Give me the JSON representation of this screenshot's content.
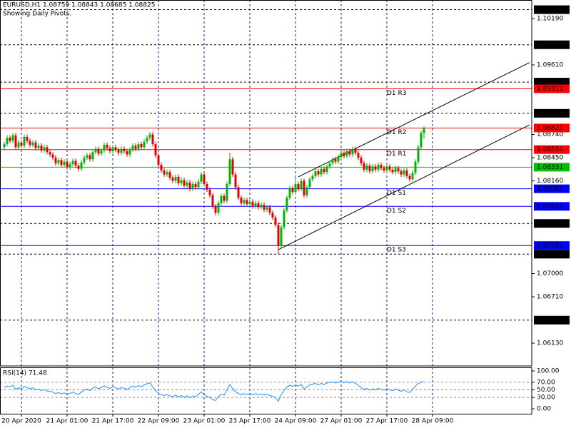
{
  "chart_data": [
    {
      "type": "candlestick",
      "title": "EURUSD,H1 1.08759 1.08843 1.08685 1.08825",
      "subtitle": "Showing Daily Pivots.",
      "up_color": "#00b400",
      "down_color": "#e00000",
      "grid": true,
      "grid_color": "#1a1aa0",
      "xlim": [
        -1.5,
        184.75
      ],
      "ylim": [
        1.05845,
        1.10422
      ],
      "xticks": [
        {
          "value": 6,
          "label": "20 Apr 2020"
        },
        {
          "value": 22,
          "label": "21 Apr 01:00"
        },
        {
          "value": 38,
          "label": "21 Apr 17:00"
        },
        {
          "value": 54,
          "label": "22 Apr 09:00"
        },
        {
          "value": 70,
          "label": "23 Apr 01:00"
        },
        {
          "value": 86,
          "label": "23 Apr 17:00"
        },
        {
          "value": 102,
          "label": "24 Apr 09:00"
        },
        {
          "value": 118,
          "label": "27 Apr 01:00"
        },
        {
          "value": 134,
          "label": "27 Apr 17:00"
        },
        {
          "value": 150,
          "label": "28 Apr 09:00"
        }
      ],
      "yticks": [
        {
          "value": 1.1019,
          "label": "1.10190"
        },
        {
          "value": 1.0961,
          "label": "1.09610"
        },
        {
          "value": 1.0874,
          "label": "1.08740"
        },
        {
          "value": 1.0845,
          "label": "1.08450"
        },
        {
          "value": 1.0816,
          "label": "1.08160"
        },
        {
          "value": 1.07,
          "label": "1.07000"
        },
        {
          "value": 1.0671,
          "label": "1.06710"
        },
        {
          "value": 1.0613,
          "label": "1.06130"
        }
      ],
      "hlines": [
        1.10301,
        1.09862,
        1.09395,
        1.09005,
        1.07627,
        1.07243,
        1.06418
      ],
      "pivots": [
        {
          "name": "D1 R3",
          "value": 1.09311,
          "color": "#ff0000"
        },
        {
          "name": "D1 R2",
          "value": 1.08821,
          "color": "#ff0000"
        },
        {
          "name": "D1 R1",
          "value": 1.08551,
          "color": "#ff0000"
        },
        {
          "value": 1.08331,
          "color": "#00c000"
        },
        {
          "name": "D1 S1",
          "value": 1.08061,
          "color": "#0000ff"
        },
        {
          "name": "D1 S2",
          "value": 1.07841,
          "color": "#0000ff"
        },
        {
          "name": "D1 S3",
          "value": 1.07351,
          "color": "#0000ff"
        }
      ],
      "trendlines": [
        {
          "x": [
            103,
            184
          ],
          "values": [
            1.0821,
            1.0964
          ]
        },
        {
          "x": [
            96,
            184
          ],
          "values": [
            1.073,
            1.0886
          ]
        }
      ],
      "ohlc": [
        [
          1.0858,
          1.0865,
          1.0855,
          1.0862
        ],
        [
          1.0862,
          1.0873,
          1.0859,
          1.087
        ],
        [
          1.087,
          1.0873,
          1.0863,
          1.0866
        ],
        [
          1.0866,
          1.0876,
          1.0863,
          1.0873
        ],
        [
          1.0873,
          1.0876,
          1.0855,
          1.0858
        ],
        [
          1.0858,
          1.0867,
          1.0855,
          1.0864
        ],
        [
          1.0864,
          1.0867,
          1.0857,
          1.086
        ],
        [
          1.086,
          1.0874,
          1.0857,
          1.0871
        ],
        [
          1.0871,
          1.0874,
          1.0863,
          1.0866
        ],
        [
          1.0866,
          1.0869,
          1.0858,
          1.0861
        ],
        [
          1.0861,
          1.0867,
          1.0858,
          1.0864
        ],
        [
          1.0864,
          1.0867,
          1.0854,
          1.0857
        ],
        [
          1.0857,
          1.0863,
          1.0854,
          1.086
        ],
        [
          1.086,
          1.0863,
          1.0851,
          1.0854
        ],
        [
          1.0854,
          1.0861,
          1.0851,
          1.0858
        ],
        [
          1.0858,
          1.0861,
          1.0849,
          1.0852
        ],
        [
          1.0852,
          1.0855,
          1.0846,
          1.0849
        ],
        [
          1.0849,
          1.0852,
          1.0842,
          1.0845
        ],
        [
          1.0845,
          1.0848,
          1.0835,
          1.0838
        ],
        [
          1.0838,
          1.0845,
          1.0835,
          1.0842
        ],
        [
          1.0842,
          1.0845,
          1.0833,
          1.0836
        ],
        [
          1.0836,
          1.0843,
          1.0833,
          1.084
        ],
        [
          1.084,
          1.0843,
          1.083,
          1.0833
        ],
        [
          1.0833,
          1.084,
          1.083,
          1.0837
        ],
        [
          1.0837,
          1.0844,
          1.0834,
          1.0841
        ],
        [
          1.0841,
          1.0844,
          1.0832,
          1.0835
        ],
        [
          1.0835,
          1.0838,
          1.0828,
          1.0831
        ],
        [
          1.0831,
          1.0842,
          1.0828,
          1.0839
        ],
        [
          1.0839,
          1.0848,
          1.0836,
          1.0845
        ],
        [
          1.0845,
          1.0851,
          1.0842,
          1.0848
        ],
        [
          1.0848,
          1.0851,
          1.084,
          1.0843
        ],
        [
          1.0843,
          1.0855,
          1.084,
          1.0852
        ],
        [
          1.0852,
          1.0859,
          1.0849,
          1.0856
        ],
        [
          1.0856,
          1.0859,
          1.0847,
          1.085
        ],
        [
          1.085,
          1.0857,
          1.0847,
          1.0854
        ],
        [
          1.0854,
          1.0864,
          1.0851,
          1.0861
        ],
        [
          1.0861,
          1.0864,
          1.0854,
          1.0857
        ],
        [
          1.0857,
          1.086,
          1.085,
          1.0853
        ],
        [
          1.0853,
          1.0861,
          1.085,
          1.0858
        ],
        [
          1.0858,
          1.0861,
          1.0852,
          1.0855
        ],
        [
          1.0855,
          1.0858,
          1.0848,
          1.0851
        ],
        [
          1.0851,
          1.0859,
          1.0848,
          1.0856
        ],
        [
          1.0856,
          1.0859,
          1.085,
          1.0853
        ],
        [
          1.0853,
          1.0856,
          1.0846,
          1.0849
        ],
        [
          1.0849,
          1.0858,
          1.0846,
          1.0855
        ],
        [
          1.0855,
          1.0863,
          1.0852,
          1.086
        ],
        [
          1.086,
          1.0863,
          1.0853,
          1.0856
        ],
        [
          1.0856,
          1.0865,
          1.0853,
          1.0862
        ],
        [
          1.0862,
          1.0865,
          1.0855,
          1.0858
        ],
        [
          1.0858,
          1.0868,
          1.0855,
          1.0865
        ],
        [
          1.0865,
          1.0873,
          1.0862,
          1.087
        ],
        [
          1.087,
          1.0877,
          1.0867,
          1.0874
        ],
        [
          1.0874,
          1.0877,
          1.0859,
          1.0862
        ],
        [
          1.0862,
          1.0865,
          1.0845,
          1.0848
        ],
        [
          1.0848,
          1.0851,
          1.0833,
          1.0836
        ],
        [
          1.0836,
          1.0839,
          1.0826,
          1.0829
        ],
        [
          1.0829,
          1.0832,
          1.0821,
          1.0824
        ],
        [
          1.0824,
          1.083,
          1.0821,
          1.0827
        ],
        [
          1.0827,
          1.083,
          1.0817,
          1.082
        ],
        [
          1.082,
          1.0823,
          1.0813,
          1.0816
        ],
        [
          1.0816,
          1.0824,
          1.0813,
          1.0821
        ],
        [
          1.0821,
          1.0824,
          1.081,
          1.0813
        ],
        [
          1.0813,
          1.082,
          1.081,
          1.0817
        ],
        [
          1.0817,
          1.082,
          1.0807,
          1.081
        ],
        [
          1.081,
          1.0817,
          1.0807,
          1.0814
        ],
        [
          1.0814,
          1.0817,
          1.0803,
          1.0806
        ],
        [
          1.0806,
          1.0815,
          1.0803,
          1.0812
        ],
        [
          1.0812,
          1.0815,
          1.0805,
          1.0808
        ],
        [
          1.0808,
          1.0818,
          1.0805,
          1.0815
        ],
        [
          1.0815,
          1.0827,
          1.0812,
          1.0824
        ],
        [
          1.0824,
          1.0827,
          1.0809,
          1.0812
        ],
        [
          1.0812,
          1.0815,
          1.0802,
          1.0805
        ],
        [
          1.0805,
          1.0808,
          1.0795,
          1.0798
        ],
        [
          1.0798,
          1.0801,
          1.0781,
          1.0784
        ],
        [
          1.0784,
          1.0787,
          1.0773,
          1.0776
        ],
        [
          1.0776,
          1.0791,
          1.0773,
          1.0788
        ],
        [
          1.0788,
          1.08,
          1.0785,
          1.0797
        ],
        [
          1.0797,
          1.08,
          1.0788,
          1.0791
        ],
        [
          1.0791,
          1.0815,
          1.0788,
          1.0812
        ],
        [
          1.0812,
          1.0851,
          1.0809,
          1.0843
        ],
        [
          1.0843,
          1.0846,
          1.0821,
          1.0824
        ],
        [
          1.0824,
          1.0827,
          1.0805,
          1.0808
        ],
        [
          1.0808,
          1.0811,
          1.0792,
          1.0795
        ],
        [
          1.0795,
          1.0798,
          1.0785,
          1.0788
        ],
        [
          1.0788,
          1.0795,
          1.0785,
          1.0792
        ],
        [
          1.0792,
          1.0795,
          1.0784,
          1.0787
        ],
        [
          1.0787,
          1.0793,
          1.0784,
          1.079
        ],
        [
          1.079,
          1.0793,
          1.0781,
          1.0784
        ],
        [
          1.0784,
          1.0791,
          1.0781,
          1.0788
        ],
        [
          1.0788,
          1.0791,
          1.078,
          1.0783
        ],
        [
          1.0783,
          1.0789,
          1.078,
          1.0786
        ],
        [
          1.0786,
          1.0789,
          1.0777,
          1.078
        ],
        [
          1.078,
          1.0786,
          1.0777,
          1.0783
        ],
        [
          1.0783,
          1.0786,
          1.0773,
          1.0776
        ],
        [
          1.0776,
          1.0779,
          1.0767,
          1.077
        ],
        [
          1.077,
          1.0773,
          1.0758,
          1.0761
        ],
        [
          1.0761,
          1.0764,
          1.07243,
          1.0735
        ],
        [
          1.0735,
          1.0761,
          1.0732,
          1.0758
        ],
        [
          1.0758,
          1.0782,
          1.0755,
          1.0779
        ],
        [
          1.0779,
          1.0798,
          1.0776,
          1.0795
        ],
        [
          1.0795,
          1.081,
          1.0792,
          1.0807
        ],
        [
          1.0807,
          1.081,
          1.0799,
          1.0802
        ],
        [
          1.0802,
          1.0821,
          1.0799,
          1.0812
        ],
        [
          1.0812,
          1.0815,
          1.0803,
          1.0806
        ],
        [
          1.0806,
          1.0819,
          1.0803,
          1.0816
        ],
        [
          1.0816,
          1.0819,
          1.0795,
          1.0798
        ],
        [
          1.0798,
          1.0811,
          1.0795,
          1.0808
        ],
        [
          1.0808,
          1.0821,
          1.0805,
          1.0818
        ],
        [
          1.0818,
          1.0825,
          1.0815,
          1.0822
        ],
        [
          1.0822,
          1.0831,
          1.0819,
          1.0828
        ],
        [
          1.0828,
          1.0831,
          1.0821,
          1.0824
        ],
        [
          1.0824,
          1.0834,
          1.0821,
          1.0831
        ],
        [
          1.0831,
          1.0834,
          1.0824,
          1.0827
        ],
        [
          1.0827,
          1.0837,
          1.0824,
          1.0834
        ],
        [
          1.0834,
          1.0841,
          1.0831,
          1.0838
        ],
        [
          1.0838,
          1.0846,
          1.0835,
          1.0843
        ],
        [
          1.0843,
          1.0846,
          1.0837,
          1.084
        ],
        [
          1.084,
          1.0849,
          1.0837,
          1.0846
        ],
        [
          1.0846,
          1.0854,
          1.0843,
          1.0851
        ],
        [
          1.0851,
          1.0854,
          1.0844,
          1.0847
        ],
        [
          1.0847,
          1.0856,
          1.0844,
          1.0853
        ],
        [
          1.0853,
          1.0856,
          1.0846,
          1.0849
        ],
        [
          1.0849,
          1.0859,
          1.0846,
          1.0856
        ],
        [
          1.0856,
          1.0859,
          1.0848,
          1.0851
        ],
        [
          1.0851,
          1.0854,
          1.0842,
          1.0845
        ],
        [
          1.0845,
          1.0848,
          1.0835,
          1.0838
        ],
        [
          1.0838,
          1.0841,
          1.0827,
          1.083
        ],
        [
          1.083,
          1.0838,
          1.0827,
          1.0835
        ],
        [
          1.0835,
          1.0838,
          1.0825,
          1.0828
        ],
        [
          1.0828,
          1.0837,
          1.0825,
          1.0834
        ],
        [
          1.0834,
          1.0837,
          1.0827,
          1.083
        ],
        [
          1.083,
          1.0839,
          1.0827,
          1.0836
        ],
        [
          1.0836,
          1.0839,
          1.0829,
          1.0832
        ],
        [
          1.0832,
          1.0835,
          1.0826,
          1.0829
        ],
        [
          1.0829,
          1.0837,
          1.0826,
          1.0834
        ],
        [
          1.0834,
          1.0837,
          1.0827,
          1.083
        ],
        [
          1.083,
          1.0833,
          1.0824,
          1.0827
        ],
        [
          1.0827,
          1.0835,
          1.0824,
          1.0832
        ],
        [
          1.0832,
          1.0835,
          1.0825,
          1.0828
        ],
        [
          1.0828,
          1.0831,
          1.0821,
          1.0824
        ],
        [
          1.0824,
          1.0832,
          1.0821,
          1.0829
        ],
        [
          1.0829,
          1.0832,
          1.0819,
          1.0822
        ],
        [
          1.0822,
          1.0825,
          1.0815,
          1.0818
        ],
        [
          1.0818,
          1.0829,
          1.0815,
          1.0826
        ],
        [
          1.0826,
          1.0843,
          1.0823,
          1.084
        ],
        [
          1.084,
          1.0861,
          1.0837,
          1.0858
        ],
        [
          1.0858,
          1.0879,
          1.0855,
          1.0876
        ],
        [
          1.08759,
          1.08843,
          1.08685,
          1.08825
        ]
      ]
    },
    {
      "type": "line",
      "title": "RSI(14) 71.48",
      "color": "#1e90ff",
      "level_color": "#909090",
      "ylim": [
        -13.2,
        109.4
      ],
      "yticks": [
        {
          "value": 100,
          "label": "100.00"
        },
        {
          "value": 70,
          "label": "70.00"
        },
        {
          "value": 50,
          "label": "50.00"
        },
        {
          "value": 30,
          "label": "30.00"
        },
        {
          "value": 0,
          "label": "0.00"
        }
      ],
      "levels": [
        70,
        50,
        30
      ],
      "values": [
        56,
        60,
        58,
        62,
        52,
        55,
        53,
        59,
        56,
        53,
        55,
        50,
        52,
        48,
        51,
        47,
        46,
        44,
        40,
        43,
        39,
        42,
        38,
        41,
        44,
        40,
        38,
        44,
        49,
        52,
        48,
        55,
        58,
        53,
        56,
        61,
        57,
        54,
        58,
        56,
        52,
        56,
        54,
        51,
        56,
        60,
        57,
        61,
        58,
        63,
        66,
        68,
        58,
        48,
        41,
        37,
        35,
        37,
        34,
        32,
        36,
        31,
        35,
        30,
        34,
        29,
        34,
        32,
        38,
        45,
        37,
        33,
        30,
        24,
        22,
        32,
        39,
        36,
        50,
        64,
        53,
        45,
        40,
        37,
        40,
        38,
        40,
        37,
        40,
        37,
        39,
        36,
        38,
        35,
        33,
        29,
        20,
        37,
        49,
        57,
        62,
        59,
        63,
        60,
        64,
        52,
        58,
        63,
        65,
        67,
        63,
        67,
        64,
        68,
        69,
        71,
        68,
        70,
        72,
        69,
        72,
        68,
        71,
        67,
        62,
        56,
        51,
        54,
        49,
        53,
        50,
        54,
        51,
        49,
        53,
        50,
        48,
        52,
        49,
        46,
        50,
        45,
        43,
        51,
        60,
        67,
        70,
        71.48
      ]
    }
  ]
}
